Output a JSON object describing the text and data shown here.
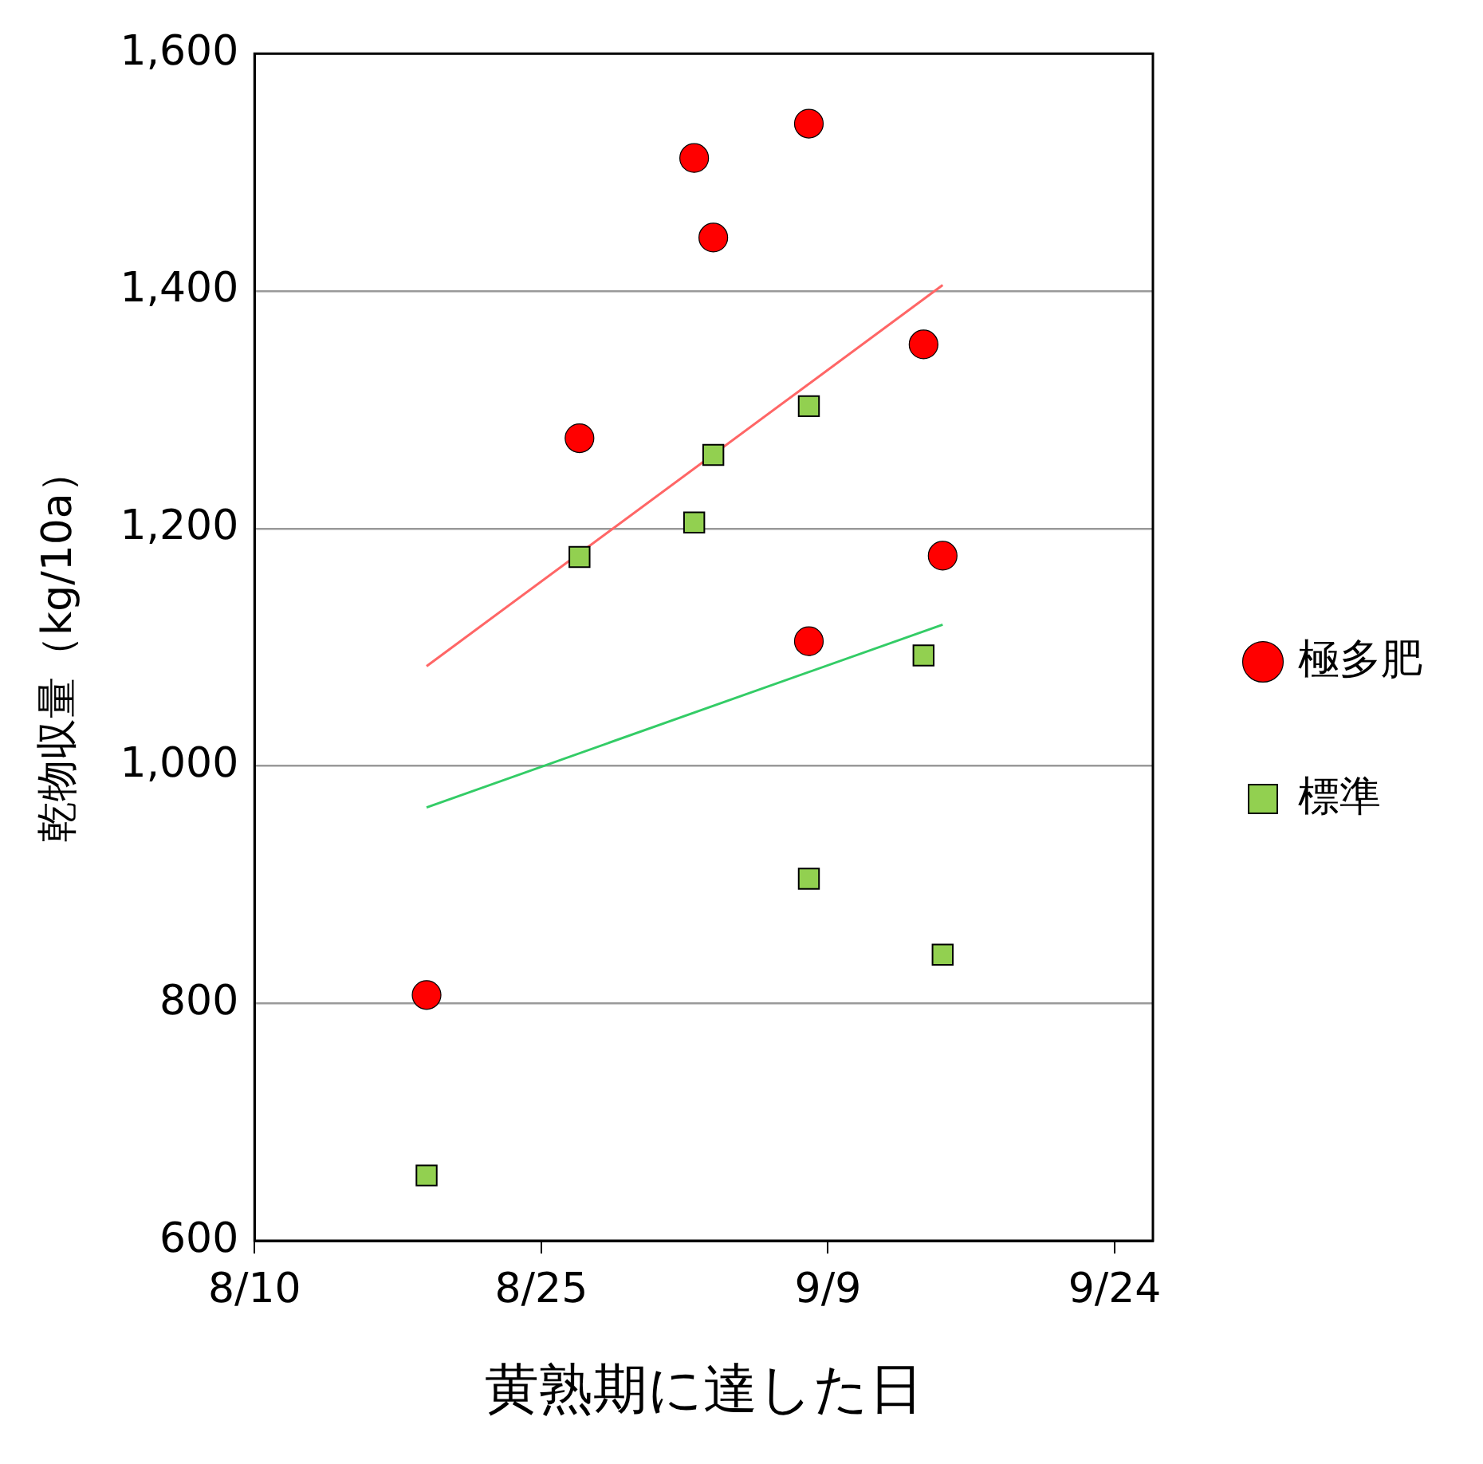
{
  "chart_data": {
    "type": "scatter",
    "xlabel": "黄熟期に達した日",
    "ylabel": "乾物収量（kg/10a）",
    "xlim": [
      "--08-10",
      "--09-26"
    ],
    "xticks": [
      {
        "value": "--08-10",
        "label": "8/10"
      },
      {
        "value": "--08-25",
        "label": "8/25"
      },
      {
        "value": "--09-09",
        "label": "9/9"
      },
      {
        "value": "--09-24",
        "label": "9/24"
      }
    ],
    "ylim": [
      600,
      1600
    ],
    "yticks": [
      {
        "value": 600,
        "label": "600"
      },
      {
        "value": 800,
        "label": "800"
      },
      {
        "value": 1000,
        "label": "1,000"
      },
      {
        "value": 1200,
        "label": "1,200"
      },
      {
        "value": 1400,
        "label": "1,400"
      },
      {
        "value": 1600,
        "label": "1,600"
      }
    ],
    "grid": "y",
    "legend": "right",
    "series": [
      {
        "name": "極多肥",
        "marker": "circle",
        "color": "#ff0000",
        "x": [
          "--08-19",
          "--08-27",
          "--09-02",
          "--09-03",
          "--09-08",
          "--09-14",
          "--09-15",
          "--09-08"
        ],
        "values": [
          807,
          1276,
          1512,
          1445,
          1541,
          1355,
          1177,
          1105
        ]
      },
      {
        "name": "標準",
        "marker": "square",
        "color": "#92d050",
        "x": [
          "--08-19",
          "--08-27",
          "--09-02",
          "--09-03",
          "--09-08",
          "--09-08",
          "--09-14",
          "--09-15"
        ],
        "values": [
          655,
          1176,
          1205,
          1262,
          1303,
          905,
          1093,
          841
        ]
      },
      {
        "type": "line",
        "marker": "none",
        "color": "#ff6666",
        "x": [
          "--08-19",
          "--09-15"
        ],
        "values": [
          1084,
          1405
        ]
      },
      {
        "type": "line",
        "marker": "none",
        "color": "#33cc66",
        "x": [
          "--08-19",
          "--09-15"
        ],
        "values": [
          965,
          1119
        ]
      }
    ]
  }
}
